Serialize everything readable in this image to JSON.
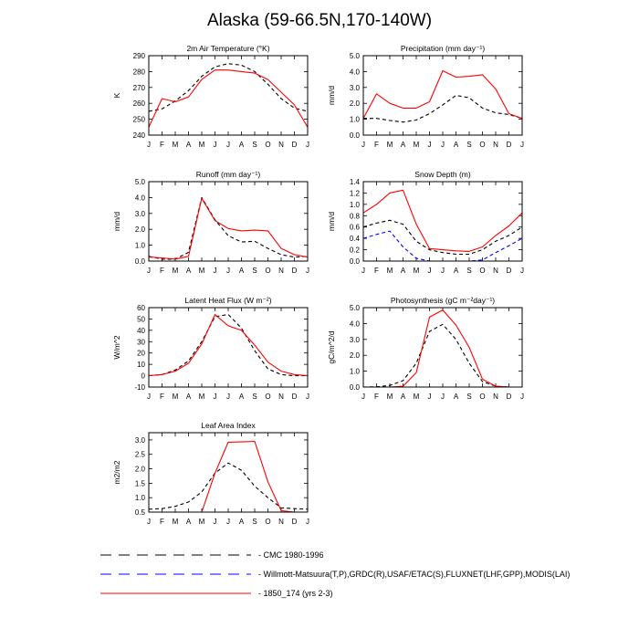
{
  "title": "Alaska (59-66.5N,170-140W)",
  "months": [
    "J",
    "F",
    "M",
    "A",
    "M",
    "J",
    "J",
    "A",
    "S",
    "O",
    "N",
    "D",
    "J"
  ],
  "legend": [
    {
      "label": "CMC 1980-1996",
      "color": "#000000",
      "style": "dashed"
    },
    {
      "label": "Willmott-Matsuura(T,P),GRDC(R),USAF/ETAC(S),FLUXNET(LHF,GPP),MODIS(LAI)",
      "color": "#0000ff",
      "style": "dashed"
    },
    {
      "label": "1850_174 (yrs 2-3)",
      "color": "#ff0000",
      "style": "solid"
    }
  ],
  "chart_data": [
    {
      "type": "line",
      "title": "2m Air Temperature (°K)",
      "ylabel": "K",
      "ylim": [
        240,
        290
      ],
      "yticks": [
        240,
        250,
        260,
        270,
        280,
        290
      ],
      "ytick_labels": [
        "240",
        "250",
        "260",
        "270",
        "280",
        "290"
      ],
      "series": [
        {
          "name": "CMC 1980-1996",
          "color": "#000000",
          "dashed": true,
          "values": [
            255,
            256.5,
            261.5,
            268,
            277,
            283,
            285,
            284,
            280,
            272,
            263,
            257,
            255
          ]
        },
        {
          "name": "1850_174 (yrs 2-3)",
          "color": "#ff0000",
          "dashed": false,
          "values": [
            245,
            263,
            261,
            264,
            275,
            281,
            281,
            280,
            279,
            275,
            267,
            259,
            245
          ]
        }
      ]
    },
    {
      "type": "line",
      "title": "Precipitation (mm day⁻¹)",
      "ylabel": "mm/d",
      "ylim": [
        0,
        5
      ],
      "yticks": [
        0,
        1,
        2,
        3,
        4,
        5
      ],
      "ytick_labels": [
        "0.0",
        "1.0",
        "2.0",
        "3.0",
        "4.0",
        "5.0"
      ],
      "series": [
        {
          "name": "Willmott-Matsuura",
          "color": "#000000",
          "dashed": true,
          "values": [
            1.05,
            1.05,
            0.92,
            0.82,
            0.95,
            1.35,
            1.9,
            2.5,
            2.35,
            1.7,
            1.4,
            1.3,
            1.05
          ]
        },
        {
          "name": "1850_174 (yrs 2-3)",
          "color": "#ff0000",
          "dashed": false,
          "values": [
            1.05,
            2.6,
            2.0,
            1.7,
            1.7,
            2.1,
            4.05,
            3.65,
            3.7,
            3.8,
            2.9,
            1.35,
            1.05
          ]
        }
      ]
    },
    {
      "type": "line",
      "title": "Runoff (mm day⁻¹)",
      "ylabel": "mm/d",
      "ylim": [
        0,
        5
      ],
      "yticks": [
        0,
        1,
        2,
        3,
        4,
        5
      ],
      "ytick_labels": [
        "0.0",
        "1.0",
        "2.0",
        "3.0",
        "4.0",
        "5.0"
      ],
      "series": [
        {
          "name": "GRDC",
          "color": "#000000",
          "dashed": true,
          "values": [
            0.3,
            0.12,
            0.12,
            0.55,
            4.0,
            2.6,
            1.6,
            1.2,
            1.25,
            0.8,
            0.4,
            0.25,
            0.3
          ]
        },
        {
          "name": "1850_174 (yrs 2-3)",
          "color": "#ff0000",
          "dashed": false,
          "values": [
            0.25,
            0.2,
            0.12,
            0.3,
            3.95,
            2.55,
            2.05,
            1.9,
            1.95,
            1.9,
            0.8,
            0.4,
            0.25
          ]
        }
      ]
    },
    {
      "type": "line",
      "title": "Snow Depth (m)",
      "ylabel": "mm/d",
      "ylim": [
        0,
        1.4
      ],
      "yticks": [
        0,
        0.2,
        0.4,
        0.6,
        0.8,
        1.0,
        1.2,
        1.4
      ],
      "ytick_labels": [
        "0.0",
        "0.2",
        "0.4",
        "0.6",
        "0.8",
        "1.0",
        "1.2",
        "1.4"
      ],
      "series": [
        {
          "name": "CMC 1980-1996",
          "color": "#000000",
          "dashed": true,
          "values": [
            0.6,
            0.67,
            0.72,
            0.65,
            0.35,
            0.2,
            0.15,
            0.12,
            0.12,
            0.2,
            0.35,
            0.45,
            0.6
          ]
        },
        {
          "name": "USAF/ETAC",
          "color": "#0000ff",
          "dashed": true,
          "values": [
            0.4,
            0.47,
            0.53,
            0.25,
            0.05,
            0.0,
            0.0,
            0.0,
            0.0,
            0.02,
            0.15,
            0.27,
            0.4
          ]
        },
        {
          "name": "1850_174 (yrs 2-3)",
          "color": "#ff0000",
          "dashed": false,
          "values": [
            0.85,
            1.0,
            1.2,
            1.25,
            0.65,
            0.22,
            0.2,
            0.18,
            0.17,
            0.25,
            0.45,
            0.62,
            0.85
          ]
        }
      ]
    },
    {
      "type": "line",
      "title": "Latent Heat Flux (W m⁻²)",
      "ylabel": "W/m^2",
      "ylim": [
        -10,
        60
      ],
      "yticks": [
        -10,
        0,
        10,
        20,
        30,
        40,
        50,
        60
      ],
      "ytick_labels": [
        "-10",
        "0",
        "10",
        "20",
        "30",
        "40",
        "50",
        "60"
      ],
      "series": [
        {
          "name": "FLUXNET",
          "color": "#000000",
          "dashed": true,
          "values": [
            0,
            1,
            5,
            13,
            30,
            52,
            54,
            42,
            22,
            6,
            1,
            0,
            0
          ]
        },
        {
          "name": "1850_174 (yrs 2-3)",
          "color": "#ff0000",
          "dashed": false,
          "values": [
            0,
            1,
            4,
            11,
            28,
            54,
            44,
            40,
            27,
            12,
            4,
            1,
            0
          ]
        }
      ]
    },
    {
      "type": "line",
      "title": "Photosynthesis (gC m⁻²day⁻¹)",
      "ylabel": "gC/m^2/d",
      "ylim": [
        0,
        5
      ],
      "yticks": [
        0,
        1,
        2,
        3,
        4,
        5
      ],
      "ytick_labels": [
        "0.0",
        "1.0",
        "2.0",
        "3.0",
        "4.0",
        "5.0"
      ],
      "series": [
        {
          "name": "FLUXNET",
          "color": "#000000",
          "dashed": true,
          "values": [
            0,
            0.02,
            0.1,
            0.4,
            1.5,
            3.5,
            3.95,
            3.0,
            1.5,
            0.35,
            0.05,
            0,
            0
          ]
        },
        {
          "name": "1850_174 (yrs 2-3)",
          "color": "#ff0000",
          "dashed": false,
          "values": [
            0,
            0,
            0,
            0.05,
            0.9,
            4.4,
            4.85,
            3.9,
            2.5,
            0.5,
            0.05,
            0,
            0
          ]
        }
      ]
    },
    {
      "type": "line",
      "title": "Leaf Area Index",
      "ylabel": "m2/m2",
      "ylim": [
        0.5,
        3.25
      ],
      "yticks": [
        0.5,
        1.0,
        1.5,
        2.0,
        2.5,
        3.0
      ],
      "ytick_labels": [
        "0.5",
        "1.0",
        "1.5",
        "2.0",
        "2.5",
        "3.0"
      ],
      "series": [
        {
          "name": "MODIS",
          "color": "#000000",
          "dashed": true,
          "values": [
            0.6,
            0.62,
            0.7,
            0.85,
            1.2,
            1.85,
            2.2,
            1.95,
            1.4,
            1.0,
            0.65,
            0.62,
            0.6
          ]
        },
        {
          "name": "1850_174 (yrs 2-3)",
          "color": "#ff0000",
          "dashed": false,
          "values": [
            0.5,
            0.5,
            0.5,
            0.5,
            0.5,
            1.85,
            2.92,
            2.93,
            2.95,
            1.55,
            0.55,
            0.5,
            0.5
          ]
        }
      ]
    }
  ]
}
